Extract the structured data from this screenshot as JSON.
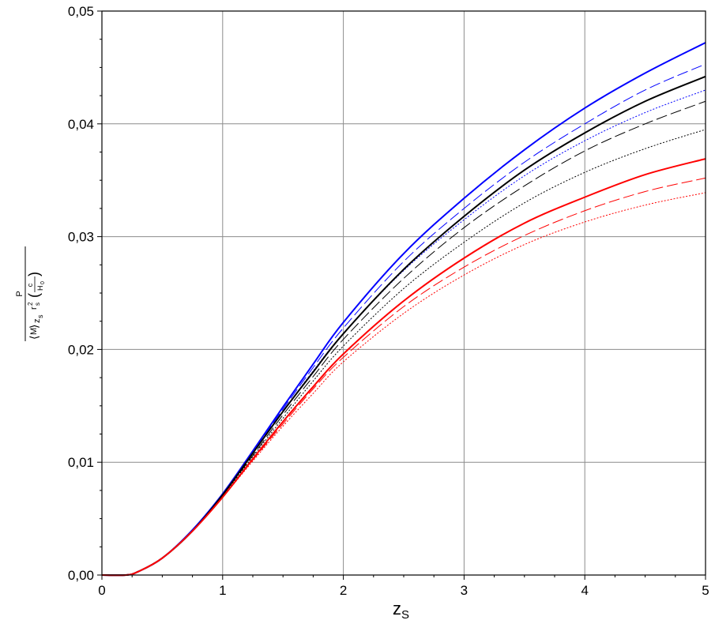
{
  "chart_data": {
    "type": "line",
    "xlabel": "z_S",
    "ylabel_parts": {
      "numerator": "P",
      "m": "M",
      "zs": "z",
      "zs_sub": "s",
      "rs": "r",
      "rs_sup": "2",
      "rs_sub": "s",
      "c": "c",
      "h": "H",
      "h_sub": "0"
    },
    "xlim": [
      0,
      5
    ],
    "ylim": [
      0,
      0.05
    ],
    "x_ticks": [
      0,
      1,
      2,
      3,
      4,
      5
    ],
    "x_tick_labels": [
      "0",
      "1",
      "2",
      "3",
      "4",
      "5"
    ],
    "y_ticks": [
      0,
      0.01,
      0.02,
      0.03,
      0.04,
      0.05
    ],
    "y_tick_labels": [
      "0,00",
      "0,01",
      "0,02",
      "0,03",
      "0,04",
      "0,05"
    ],
    "grid": true,
    "x": [
      0,
      0.2,
      0.3,
      0.5,
      0.75,
      1.0,
      1.25,
      1.5,
      1.75,
      2.0,
      2.5,
      3.0,
      3.5,
      4.0,
      4.5,
      5.0
    ],
    "series": [
      {
        "color": "#0000ff",
        "style": "solid",
        "width": 2,
        "values": [
          0,
          0,
          0.0003,
          0.0015,
          0.004,
          0.0072,
          0.011,
          0.0149,
          0.0187,
          0.0224,
          0.0285,
          0.0334,
          0.0377,
          0.0414,
          0.0445,
          0.0472
        ]
      },
      {
        "color": "#0000ff",
        "style": "dashed",
        "width": 1,
        "values": [
          0,
          0,
          0.0003,
          0.0015,
          0.004,
          0.0072,
          0.0109,
          0.0147,
          0.0184,
          0.0219,
          0.0278,
          0.0325,
          0.0366,
          0.04,
          0.043,
          0.0453
        ]
      },
      {
        "color": "#0000ff",
        "style": "dotted",
        "width": 1,
        "values": [
          0,
          0,
          0.0003,
          0.0015,
          0.004,
          0.0071,
          0.0108,
          0.0145,
          0.0181,
          0.0214,
          0.027,
          0.0315,
          0.0354,
          0.0385,
          0.041,
          0.043
        ]
      },
      {
        "color": "#000000",
        "style": "solid",
        "width": 2,
        "values": [
          0,
          0,
          0.0003,
          0.0015,
          0.0039,
          0.0071,
          0.0108,
          0.0145,
          0.018,
          0.0214,
          0.0271,
          0.0318,
          0.0359,
          0.0392,
          0.042,
          0.0442
        ]
      },
      {
        "color": "#000000",
        "style": "dashed",
        "width": 1,
        "values": [
          0,
          0,
          0.0003,
          0.0015,
          0.0039,
          0.0071,
          0.0106,
          0.0142,
          0.0176,
          0.0209,
          0.0263,
          0.0308,
          0.0345,
          0.0376,
          0.04,
          0.042
        ]
      },
      {
        "color": "#000000",
        "style": "dotted",
        "width": 1,
        "values": [
          0,
          0,
          0.0003,
          0.0015,
          0.0039,
          0.007,
          0.0105,
          0.0139,
          0.0172,
          0.0203,
          0.0254,
          0.0295,
          0.033,
          0.0357,
          0.0378,
          0.0395
        ]
      },
      {
        "color": "#ff0000",
        "style": "solid",
        "width": 2,
        "values": [
          0,
          0,
          0.0003,
          0.0015,
          0.0039,
          0.0069,
          0.0103,
          0.0136,
          0.0167,
          0.0196,
          0.0243,
          0.0281,
          0.0312,
          0.0335,
          0.0355,
          0.0369
        ]
      },
      {
        "color": "#ff0000",
        "style": "dashed",
        "width": 1,
        "values": [
          0,
          0,
          0.0003,
          0.0015,
          0.0039,
          0.0069,
          0.0102,
          0.0134,
          0.0165,
          0.0193,
          0.0238,
          0.0273,
          0.0301,
          0.0323,
          0.034,
          0.0352
        ]
      },
      {
        "color": "#ff0000",
        "style": "dotted",
        "width": 1,
        "values": [
          0,
          0,
          0.0003,
          0.0015,
          0.0039,
          0.0069,
          0.0101,
          0.0132,
          0.0161,
          0.0189,
          0.0232,
          0.0266,
          0.0293,
          0.0313,
          0.0328,
          0.0339
        ]
      }
    ]
  }
}
